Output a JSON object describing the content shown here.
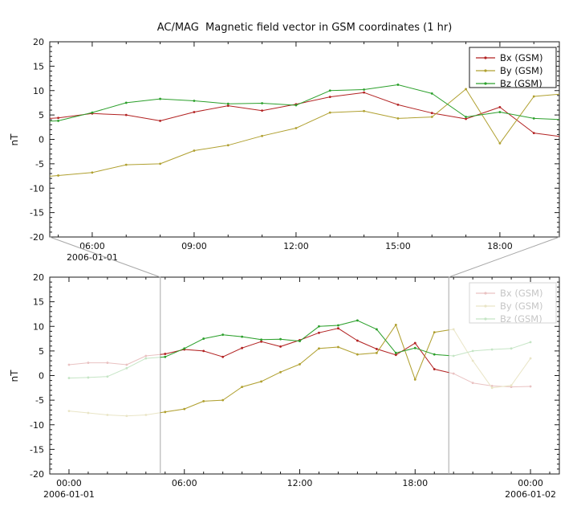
{
  "chart_data": {
    "type": "line",
    "title": "AC/MAG  Magnetic field vector in GSM coordinates (1 hr)",
    "ylabel": "nT",
    "x_unit": "hours since 2006-01-01 00:00",
    "x": [
      0,
      1,
      2,
      3,
      4,
      5,
      6,
      7,
      8,
      9,
      10,
      11,
      12,
      13,
      14,
      15,
      16,
      17,
      18,
      19,
      20,
      21,
      22,
      23,
      24,
      25
    ],
    "series": [
      {
        "name": "Bx (GSM)",
        "color": "#b22222",
        "values": [
          2.2,
          2.6,
          2.6,
          2.2,
          4.0,
          4.4,
          5.3,
          5.0,
          3.8,
          5.6,
          6.9,
          5.9,
          7.2,
          8.7,
          9.6,
          7.1,
          5.4,
          4.2,
          6.6,
          1.3,
          0.4,
          -1.5,
          -2.1,
          -2.3,
          -2.2,
          null
        ]
      },
      {
        "name": "By (GSM)",
        "color": "#b0a030",
        "values": [
          -7.2,
          -7.6,
          -8.0,
          -8.2,
          -8.0,
          -7.4,
          -6.8,
          -5.2,
          -5.0,
          -2.3,
          -1.2,
          0.7,
          2.3,
          5.5,
          5.8,
          4.3,
          4.6,
          10.3,
          -0.8,
          8.8,
          9.4,
          3.0,
          -2.5,
          -2.0,
          3.5,
          null
        ]
      },
      {
        "name": "Bz (GSM)",
        "color": "#2ca02c",
        "values": [
          -0.5,
          -0.4,
          -0.2,
          1.5,
          3.5,
          3.8,
          5.5,
          7.5,
          8.3,
          7.9,
          7.3,
          7.4,
          7.0,
          10.0,
          10.2,
          11.2,
          9.4,
          4.6,
          5.6,
          4.3,
          4.0,
          5.0,
          5.3,
          5.5,
          6.8,
          null
        ]
      }
    ],
    "yticks": [
      -20,
      -15,
      -10,
      -5,
      0,
      5,
      10,
      15,
      20
    ],
    "panels": [
      {
        "id": "detail",
        "xlim_hours": [
          4.75,
          19.75
        ],
        "ylim": [
          -20,
          20
        ],
        "xticks": [
          {
            "hour": 6,
            "label": "06:00"
          },
          {
            "hour": 9,
            "label": "09:00"
          },
          {
            "hour": 12,
            "label": "12:00"
          },
          {
            "hour": 15,
            "label": "15:00"
          },
          {
            "hour": 18,
            "label": "18:00"
          }
        ],
        "date_labels": [
          {
            "hour": 6,
            "label": "2006-01-01"
          }
        ],
        "legend_faded": false,
        "fade_outside_region": false
      },
      {
        "id": "context",
        "xlim_hours": [
          -1,
          25.5
        ],
        "ylim": [
          -20,
          20
        ],
        "xticks": [
          {
            "hour": 0,
            "label": "00:00"
          },
          {
            "hour": 6,
            "label": "06:00"
          },
          {
            "hour": 12,
            "label": "12:00"
          },
          {
            "hour": 18,
            "label": "18:00"
          },
          {
            "hour": 24,
            "label": "00:00"
          }
        ],
        "date_labels": [
          {
            "hour": 0,
            "label": "2006-01-01"
          },
          {
            "hour": 24,
            "label": "2006-01-02"
          }
        ],
        "highlight_region_hours": [
          4.75,
          19.75
        ],
        "legend_faded": true,
        "fade_outside_region": true
      }
    ],
    "legend_position": "top-right",
    "grid": false,
    "style": {
      "background": "#ffffff",
      "axis_color": "#1a1a1a",
      "text_color": "#111111",
      "selection_color": "#a8a8a8",
      "faded_opacity": 0.27,
      "legend_faded_text": "#c6c6c6",
      "legend_faded_border": "#d6d6d6"
    }
  }
}
